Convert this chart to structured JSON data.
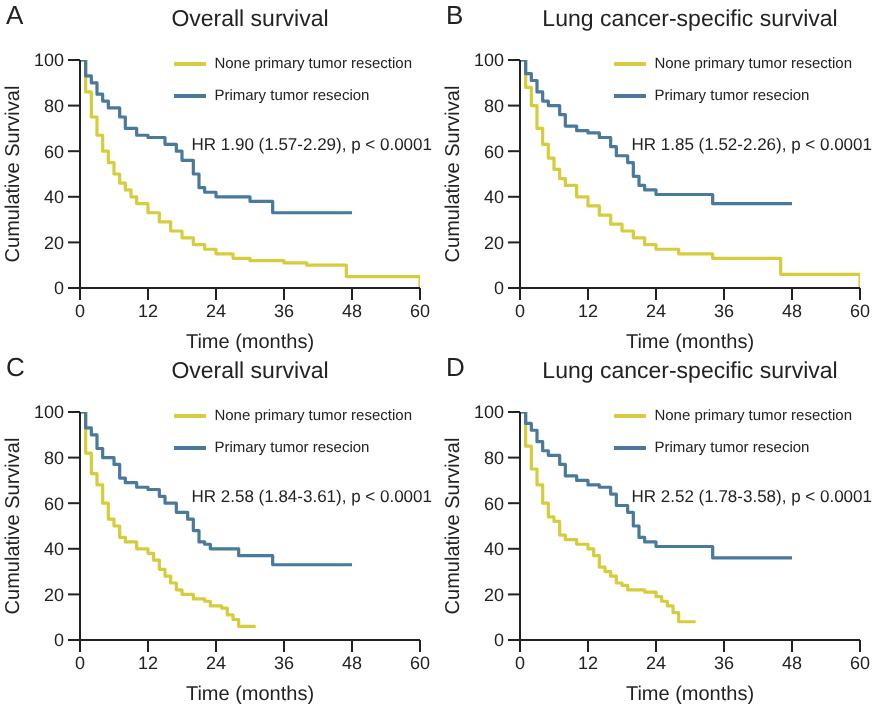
{
  "chart_data": [
    {
      "type": "step",
      "title": "Overall survival",
      "annotations": [
        "A",
        "HR 1.90 (1.57-2.29), p < 0.0001"
      ],
      "xlabel": "Time (months)",
      "ylabel": "Cumulative Survival",
      "xlim": [
        0,
        60
      ],
      "xticks": [
        0,
        12,
        24,
        36,
        48,
        60
      ],
      "ylim": [
        0,
        100
      ],
      "yticks": [
        0,
        20,
        40,
        60,
        80,
        100
      ],
      "legend": "top right",
      "series": [
        {
          "name": "None primary tumor resection",
          "color": "#d6cc3c",
          "x": [
            0,
            1,
            2,
            3,
            4,
            5,
            6,
            7,
            8,
            9,
            10,
            12,
            14,
            16,
            18,
            20,
            22,
            24,
            27,
            30,
            36,
            40,
            47,
            59,
            60
          ],
          "values": [
            100,
            86,
            75,
            67,
            60,
            55,
            50,
            46,
            43,
            40,
            37,
            33,
            29,
            25,
            22,
            19,
            17,
            15,
            13,
            12,
            11,
            10,
            5,
            5,
            0
          ]
        },
        {
          "name": "Primary tumor resecion",
          "color": "#4a7a9b",
          "x": [
            0,
            1,
            2,
            3,
            4,
            5,
            7,
            8,
            10,
            12,
            15,
            17,
            18,
            20,
            21,
            22,
            24,
            30,
            34,
            48
          ],
          "values": [
            100,
            93,
            90,
            85,
            82,
            79,
            75,
            70,
            67,
            66,
            63,
            60,
            56,
            50,
            44,
            42,
            40,
            38,
            33,
            33
          ]
        }
      ]
    },
    {
      "type": "step",
      "title": "Lung cancer-specific survival",
      "annotations": [
        "B",
        "HR 1.85 (1.52-2.26), p < 0.0001"
      ],
      "xlabel": "Time (months)",
      "ylabel": "Cumulative Survival",
      "xlim": [
        0,
        60
      ],
      "xticks": [
        0,
        12,
        24,
        36,
        48,
        60
      ],
      "ylim": [
        0,
        100
      ],
      "yticks": [
        0,
        20,
        40,
        60,
        80,
        100
      ],
      "legend": "top right",
      "series": [
        {
          "name": "None primary tumor resection",
          "color": "#d6cc3c",
          "x": [
            0,
            1,
            2,
            3,
            4,
            5,
            6,
            7,
            8,
            10,
            12,
            14,
            16,
            18,
            20,
            22,
            24,
            28,
            34,
            46,
            59,
            60
          ],
          "values": [
            100,
            88,
            80,
            70,
            63,
            57,
            52,
            48,
            45,
            40,
            36,
            32,
            28,
            25,
            22,
            19,
            17,
            15,
            13,
            6,
            6,
            0
          ]
        },
        {
          "name": "Primary tumor resecion",
          "color": "#4a7a9b",
          "x": [
            0,
            1,
            2,
            3,
            4,
            5,
            7,
            8,
            10,
            12,
            14,
            16,
            17,
            19,
            20,
            21,
            22,
            24,
            34,
            48
          ],
          "values": [
            100,
            94,
            91,
            86,
            82,
            80,
            76,
            71,
            69,
            68,
            66,
            62,
            58,
            55,
            49,
            45,
            43,
            41,
            37,
            37
          ]
        }
      ]
    },
    {
      "type": "step",
      "title": "Overall survival",
      "annotations": [
        "C",
        "HR 2.58 (1.84-3.61), p < 0.0001"
      ],
      "xlabel": "Time (months)",
      "ylabel": "Cumulative Survival",
      "xlim": [
        0,
        60
      ],
      "xticks": [
        0,
        12,
        24,
        36,
        48,
        60
      ],
      "ylim": [
        0,
        100
      ],
      "yticks": [
        0,
        20,
        40,
        60,
        80,
        100
      ],
      "legend": "top right",
      "series": [
        {
          "name": "None primary tumor resection",
          "color": "#d6cc3c",
          "x": [
            0,
            1,
            2,
            3,
            4,
            5,
            6,
            7,
            8,
            10,
            12,
            13,
            14,
            15,
            16,
            17,
            18,
            20,
            22,
            23,
            25,
            26,
            27,
            28,
            31
          ],
          "values": [
            100,
            82,
            73,
            68,
            60,
            53,
            50,
            45,
            43,
            40,
            38,
            35,
            31,
            28,
            25,
            22,
            20,
            18,
            17,
            15,
            14,
            11,
            9,
            6,
            6
          ]
        },
        {
          "name": "Primary tumor resecion",
          "color": "#4a7a9b",
          "x": [
            0,
            1,
            2,
            3,
            4,
            6,
            7,
            8,
            10,
            12,
            14,
            15,
            17,
            19,
            20,
            21,
            22,
            23,
            28,
            34,
            48
          ],
          "values": [
            100,
            93,
            90,
            84,
            80,
            77,
            71,
            69,
            67,
            66,
            63,
            60,
            56,
            53,
            48,
            43,
            42,
            40,
            37,
            33,
            33
          ]
        }
      ]
    },
    {
      "type": "step",
      "title": "Lung cancer-specific survival",
      "annotations": [
        "D",
        "HR 2.52 (1.78-3.58), p < 0.0001"
      ],
      "xlabel": "Time (months)",
      "ylabel": "Cumulative Survival",
      "xlim": [
        0,
        60
      ],
      "xticks": [
        0,
        12,
        24,
        36,
        48,
        60
      ],
      "ylim": [
        0,
        100
      ],
      "yticks": [
        0,
        20,
        40,
        60,
        80,
        100
      ],
      "legend": "top right",
      "series": [
        {
          "name": "None primary tumor resection",
          "color": "#d6cc3c",
          "x": [
            0,
            1,
            2,
            3,
            4,
            5,
            6,
            7,
            8,
            10,
            12,
            13,
            14,
            15,
            16,
            17,
            18,
            19,
            22,
            24,
            25,
            26,
            27,
            28,
            31
          ],
          "values": [
            100,
            85,
            75,
            68,
            60,
            54,
            52,
            46,
            44,
            42,
            40,
            37,
            32,
            30,
            28,
            25,
            24,
            22,
            21,
            19,
            17,
            15,
            12,
            8,
            8
          ]
        },
        {
          "name": "Primary tumor resecion",
          "color": "#4a7a9b",
          "x": [
            0,
            1,
            2,
            3,
            4,
            5,
            7,
            8,
            10,
            12,
            14,
            16,
            17,
            19,
            20,
            21,
            22,
            24,
            34,
            48
          ],
          "values": [
            100,
            95,
            92,
            87,
            83,
            81,
            77,
            72,
            70,
            68,
            67,
            64,
            59,
            56,
            50,
            45,
            43,
            41,
            36,
            36
          ]
        }
      ]
    }
  ]
}
